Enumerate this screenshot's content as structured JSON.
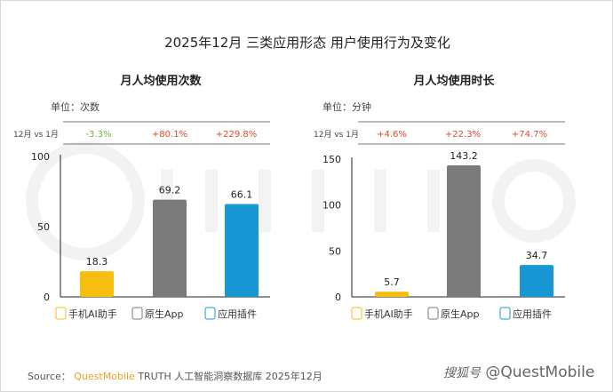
{
  "title": "2025年12月 三类应用形态 用户使用行为及变化",
  "watermark": "QUEST MOBILE",
  "colors": {
    "yellow": "#f7be12",
    "gray": "#7a7a7a",
    "blue": "#1798d4",
    "up": "#e0492b",
    "down": "#6ab43e"
  },
  "comparison_label": "12月 vs 1月",
  "chart_data": [
    {
      "type": "bar",
      "title": "月人均使用次数",
      "unit": "单位：次数",
      "categories": [
        "手机AI助手",
        "原生App",
        "应用插件"
      ],
      "values": [
        18.3,
        69.2,
        66.1
      ],
      "value_labels": [
        "18.3",
        "69.2",
        "66.1"
      ],
      "changes": [
        "-3.3%",
        "+80.1%",
        "+229.8%"
      ],
      "ylim": [
        0,
        100
      ],
      "yticks": [
        "0",
        "50",
        "100"
      ],
      "ytick_values": [
        0,
        50,
        100
      ]
    },
    {
      "type": "bar",
      "title": "月人均使用时长",
      "unit": "单位：分钟",
      "categories": [
        "手机AI助手",
        "原生App",
        "应用插件"
      ],
      "values": [
        5.7,
        143.2,
        34.7
      ],
      "value_labels": [
        "5.7",
        "143.2",
        "34.7"
      ],
      "changes": [
        "+4.6%",
        "+22.3%",
        "+74.7%"
      ],
      "ylim": [
        0,
        150
      ],
      "yticks": [
        "0",
        "50",
        "100",
        "150"
      ],
      "ytick_values": [
        0,
        50,
        100,
        150
      ]
    }
  ],
  "legend_icons": [
    "phone-icon",
    "app-icon",
    "ai-plugin-icon"
  ],
  "footer": {
    "source_label": "Source：",
    "brand": "QuestMobile",
    "source_text": "TRUTH 人工智能洞察数据库 2025年12月",
    "credit_prefix": "搜狐号",
    "credit": "@QuestMobile"
  }
}
